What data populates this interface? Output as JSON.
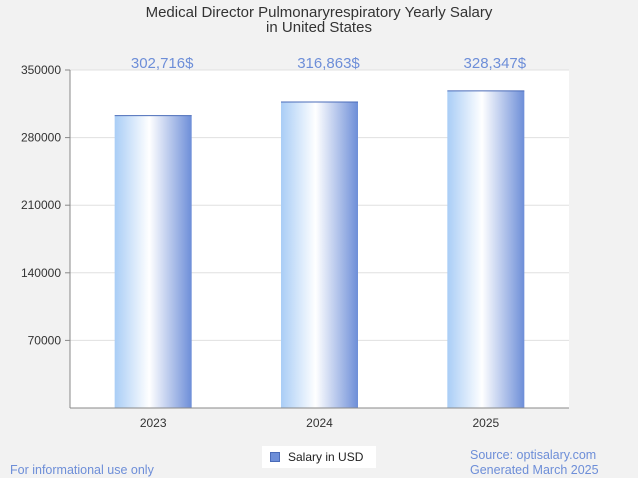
{
  "chart_data": {
    "type": "bar",
    "title": [
      "Medical Director Pulmonaryrespiratory Yearly Salary",
      "in United States"
    ],
    "categories": [
      "2023",
      "2024",
      "2025"
    ],
    "series": [
      {
        "name": "Salary in USD",
        "values": [
          302716,
          316863,
          328347
        ]
      }
    ],
    "data_labels": [
      "302,716$",
      "316,863$",
      "328,347$"
    ],
    "y_ticks": [
      70000,
      140000,
      210000,
      280000,
      350000
    ],
    "ylim": [
      0,
      350000
    ],
    "grid": true,
    "legend_position": "bottom",
    "colors": {
      "bar_edge": "#6d8ed8",
      "bar_light": "#ffffff",
      "bar_tint": "#a9cdf6",
      "label": "#6d8ed8"
    }
  },
  "footer": {
    "left": "For informational use only",
    "source": "Source: optisalary.com",
    "generated": "Generated March 2025"
  }
}
